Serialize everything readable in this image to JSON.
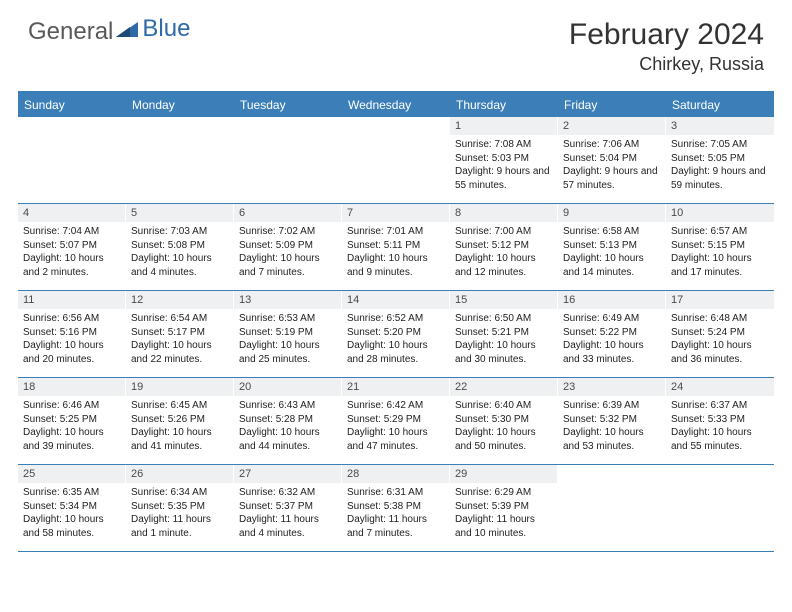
{
  "logo": {
    "text1": "General",
    "text2": "Blue"
  },
  "title": "February 2024",
  "location": "Chirkey, Russia",
  "header_color": "#3c7fb8",
  "weekdays": [
    "Sunday",
    "Monday",
    "Tuesday",
    "Wednesday",
    "Thursday",
    "Friday",
    "Saturday"
  ],
  "weeks": [
    [
      null,
      null,
      null,
      null,
      {
        "n": "1",
        "sr": "7:08 AM",
        "ss": "5:03 PM",
        "dl": "9 hours and 55 minutes."
      },
      {
        "n": "2",
        "sr": "7:06 AM",
        "ss": "5:04 PM",
        "dl": "9 hours and 57 minutes."
      },
      {
        "n": "3",
        "sr": "7:05 AM",
        "ss": "5:05 PM",
        "dl": "9 hours and 59 minutes."
      }
    ],
    [
      {
        "n": "4",
        "sr": "7:04 AM",
        "ss": "5:07 PM",
        "dl": "10 hours and 2 minutes."
      },
      {
        "n": "5",
        "sr": "7:03 AM",
        "ss": "5:08 PM",
        "dl": "10 hours and 4 minutes."
      },
      {
        "n": "6",
        "sr": "7:02 AM",
        "ss": "5:09 PM",
        "dl": "10 hours and 7 minutes."
      },
      {
        "n": "7",
        "sr": "7:01 AM",
        "ss": "5:11 PM",
        "dl": "10 hours and 9 minutes."
      },
      {
        "n": "8",
        "sr": "7:00 AM",
        "ss": "5:12 PM",
        "dl": "10 hours and 12 minutes."
      },
      {
        "n": "9",
        "sr": "6:58 AM",
        "ss": "5:13 PM",
        "dl": "10 hours and 14 minutes."
      },
      {
        "n": "10",
        "sr": "6:57 AM",
        "ss": "5:15 PM",
        "dl": "10 hours and 17 minutes."
      }
    ],
    [
      {
        "n": "11",
        "sr": "6:56 AM",
        "ss": "5:16 PM",
        "dl": "10 hours and 20 minutes."
      },
      {
        "n": "12",
        "sr": "6:54 AM",
        "ss": "5:17 PM",
        "dl": "10 hours and 22 minutes."
      },
      {
        "n": "13",
        "sr": "6:53 AM",
        "ss": "5:19 PM",
        "dl": "10 hours and 25 minutes."
      },
      {
        "n": "14",
        "sr": "6:52 AM",
        "ss": "5:20 PM",
        "dl": "10 hours and 28 minutes."
      },
      {
        "n": "15",
        "sr": "6:50 AM",
        "ss": "5:21 PM",
        "dl": "10 hours and 30 minutes."
      },
      {
        "n": "16",
        "sr": "6:49 AM",
        "ss": "5:22 PM",
        "dl": "10 hours and 33 minutes."
      },
      {
        "n": "17",
        "sr": "6:48 AM",
        "ss": "5:24 PM",
        "dl": "10 hours and 36 minutes."
      }
    ],
    [
      {
        "n": "18",
        "sr": "6:46 AM",
        "ss": "5:25 PM",
        "dl": "10 hours and 39 minutes."
      },
      {
        "n": "19",
        "sr": "6:45 AM",
        "ss": "5:26 PM",
        "dl": "10 hours and 41 minutes."
      },
      {
        "n": "20",
        "sr": "6:43 AM",
        "ss": "5:28 PM",
        "dl": "10 hours and 44 minutes."
      },
      {
        "n": "21",
        "sr": "6:42 AM",
        "ss": "5:29 PM",
        "dl": "10 hours and 47 minutes."
      },
      {
        "n": "22",
        "sr": "6:40 AM",
        "ss": "5:30 PM",
        "dl": "10 hours and 50 minutes."
      },
      {
        "n": "23",
        "sr": "6:39 AM",
        "ss": "5:32 PM",
        "dl": "10 hours and 53 minutes."
      },
      {
        "n": "24",
        "sr": "6:37 AM",
        "ss": "5:33 PM",
        "dl": "10 hours and 55 minutes."
      }
    ],
    [
      {
        "n": "25",
        "sr": "6:35 AM",
        "ss": "5:34 PM",
        "dl": "10 hours and 58 minutes."
      },
      {
        "n": "26",
        "sr": "6:34 AM",
        "ss": "5:35 PM",
        "dl": "11 hours and 1 minute."
      },
      {
        "n": "27",
        "sr": "6:32 AM",
        "ss": "5:37 PM",
        "dl": "11 hours and 4 minutes."
      },
      {
        "n": "28",
        "sr": "6:31 AM",
        "ss": "5:38 PM",
        "dl": "11 hours and 7 minutes."
      },
      {
        "n": "29",
        "sr": "6:29 AM",
        "ss": "5:39 PM",
        "dl": "11 hours and 10 minutes."
      },
      null,
      null
    ]
  ]
}
